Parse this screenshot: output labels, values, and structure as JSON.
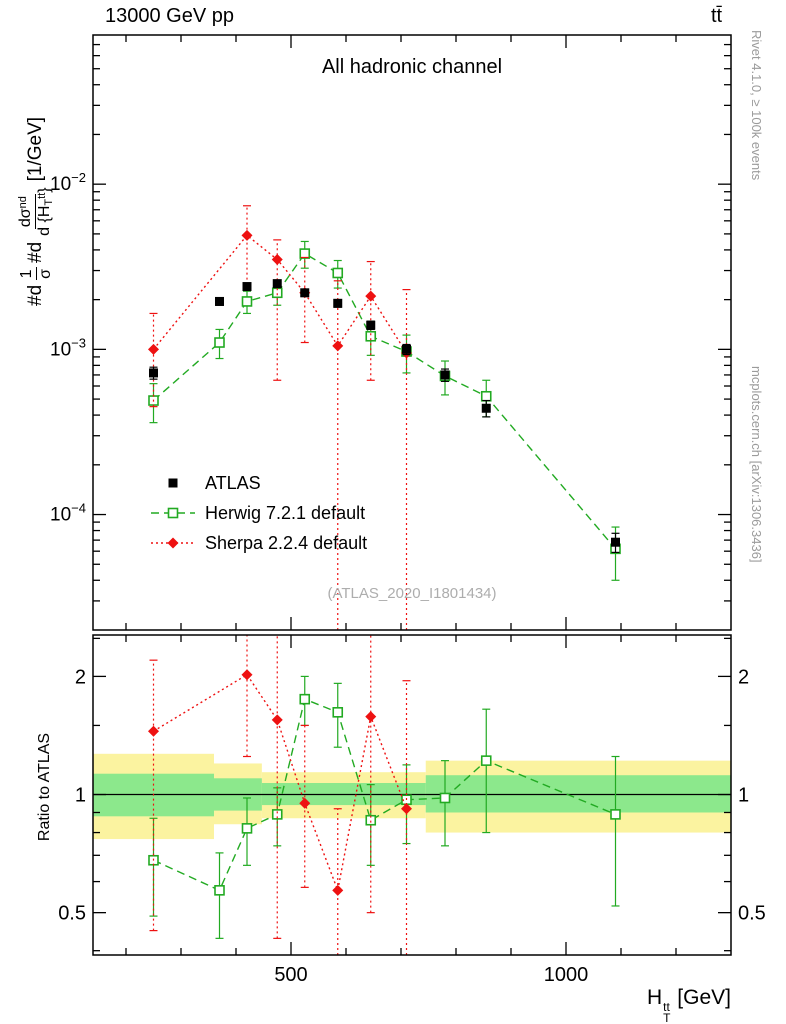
{
  "labels": {
    "header_left": "13000 GeV pp",
    "header_right": "tt̄",
    "title": "All hadronic channel",
    "watermark": "(ATLAS_2020_I1801434)",
    "rivet_note": "Rivet 4.1.0, ≥ 100k events",
    "mcplots_note": "mcplots.cern.ch [arXiv:1306.3436]",
    "ratio_ylabel": "Ratio to ATLAS",
    "xlabel": {
      "base": "H",
      "sup": "tt",
      "sub": "T",
      "unit": " [GeV]"
    },
    "ylabel": {
      "d1": "#d",
      "frac1_num": "1",
      "frac1_den": "σ",
      "d2": "#d",
      "frac2_num": "dσ",
      "frac2_num_sup": "nd",
      "frac2_den_pre": "d {H",
      "frac2_den_sub": "T",
      "frac2_den_sup": "tt",
      "frac2_den_post": "}",
      "unit": "[1/GeV]"
    }
  },
  "chart_data": {
    "type": "scatter",
    "title": "All hadronic channel",
    "xlabel": "H_T^tt [GeV]",
    "ylabel": "#d 1/σ #d dσ^nd / d {H_T^tt} [1/GeV]",
    "ratio_ylabel": "Ratio to ATLAS",
    "legend_position": "inside-left",
    "top_panel": {
      "x_scale": "linear",
      "y_scale": "log",
      "x_domain": [
        140,
        1300
      ],
      "y_domain": [
        2e-05,
        0.08
      ],
      "x_ticks": [
        {
          "label": "500",
          "value": 500
        },
        {
          "label": "1000",
          "value": 1000
        }
      ],
      "x_minor_step": 100,
      "y_ticks": [
        {
          "base": "10",
          "exp": "−2",
          "value": 0.01
        },
        {
          "base": "10",
          "exp": "−3",
          "value": 0.001
        },
        {
          "base": "10",
          "exp": "−4",
          "value": 0.0001
        }
      ]
    },
    "ratio_panel": {
      "y_scale": "log",
      "y_domain": [
        0.39,
        2.55
      ],
      "reference_line": 1,
      "ticks": [
        {
          "label": "2",
          "value": 2
        },
        {
          "label": "1",
          "value": 1
        },
        {
          "label": "0.5",
          "value": 0.5
        }
      ],
      "minor_ticks": [
        0.4,
        0.6,
        0.7,
        0.8,
        0.9,
        1.5,
        2.5
      ]
    },
    "bands": [
      {
        "name": "data-uncertainty-outer",
        "color": "#fbf3a0",
        "segments": [
          {
            "x1": 140,
            "x2": 360,
            "lo": 0.77,
            "hi": 1.27
          },
          {
            "x1": 360,
            "x2": 447,
            "lo": 0.84,
            "hi": 1.2
          },
          {
            "x1": 447,
            "x2": 745,
            "lo": 0.87,
            "hi": 1.14
          },
          {
            "x1": 745,
            "x2": 1300,
            "lo": 0.8,
            "hi": 1.22
          }
        ]
      },
      {
        "name": "data-uncertainty-inner",
        "color": "#8ce88c",
        "segments": [
          {
            "x1": 140,
            "x2": 360,
            "lo": 0.88,
            "hi": 1.13
          },
          {
            "x1": 360,
            "x2": 447,
            "lo": 0.91,
            "hi": 1.1
          },
          {
            "x1": 447,
            "x2": 745,
            "lo": 0.94,
            "hi": 1.07
          },
          {
            "x1": 745,
            "x2": 1300,
            "lo": 0.9,
            "hi": 1.12
          }
        ]
      }
    ],
    "series": [
      {
        "name": "ATLAS",
        "color": "#000000",
        "marker": "square-filled",
        "line": "none",
        "x": [
          250,
          370,
          420,
          475,
          525,
          585,
          645,
          710,
          780,
          855,
          1090
        ],
        "y": [
          0.00072,
          0.00195,
          0.0024,
          0.0025,
          0.0022,
          0.0019,
          0.0014,
          0.001,
          0.0007,
          0.00044,
          6.8e-05
        ],
        "y_lo": [
          0.00066,
          0.00185,
          0.00228,
          0.00238,
          0.00209,
          0.0018,
          0.00132,
          0.00093,
          0.00064,
          0.00039,
          5.9e-05
        ],
        "y_hi": [
          0.00078,
          0.00205,
          0.00252,
          0.00262,
          0.00231,
          0.002,
          0.00148,
          0.00107,
          0.00076,
          0.00049,
          7.7e-05
        ]
      },
      {
        "name": "Herwig 7.2.1 default",
        "color": "#22aa22",
        "marker": "square-open",
        "line": "dashed",
        "x": [
          250,
          370,
          420,
          475,
          525,
          585,
          645,
          710,
          780,
          855,
          1090
        ],
        "y": [
          0.00049,
          0.0011,
          0.00195,
          0.0022,
          0.0038,
          0.0029,
          0.0012,
          0.00097,
          0.00069,
          0.00052,
          6.2e-05
        ],
        "y_lo": [
          0.00036,
          0.00088,
          0.00165,
          0.00185,
          0.0031,
          0.00235,
          0.00092,
          0.00072,
          0.00053,
          0.00039,
          4e-05
        ],
        "y_hi": [
          0.00062,
          0.00132,
          0.00225,
          0.00255,
          0.0045,
          0.00345,
          0.00148,
          0.00122,
          0.00085,
          0.00065,
          8.4e-05
        ],
        "ratio": [
          0.68,
          0.57,
          0.82,
          0.89,
          1.75,
          1.62,
          0.86,
          0.97,
          0.98,
          1.22,
          0.89
        ],
        "ratio_lo": [
          0.49,
          0.43,
          0.66,
          0.74,
          1.5,
          1.32,
          0.66,
          0.75,
          0.74,
          0.8,
          0.52
        ],
        "ratio_hi": [
          0.87,
          0.71,
          0.98,
          1.04,
          2.0,
          1.92,
          1.06,
          1.19,
          1.22,
          1.65,
          1.25
        ]
      },
      {
        "name": "Sherpa 2.2.4 default",
        "color": "#ee1111",
        "marker": "diamond-filled",
        "line": "dotted",
        "x": [
          250,
          420,
          475,
          525,
          585,
          645,
          710
        ],
        "y": [
          0.001,
          0.0049,
          0.0035,
          0.0022,
          0.00105,
          0.0021,
          0.00095
        ],
        "y_lo": [
          0.00045,
          0.0023,
          0.00065,
          0.0011,
          2e-05,
          0.00065,
          2e-05
        ],
        "y_hi": [
          0.00165,
          0.0074,
          0.0046,
          0.0036,
          0.0026,
          0.0034,
          0.0023
        ],
        "ratio": [
          1.45,
          2.02,
          1.55,
          0.95,
          0.57,
          1.58,
          0.92
        ],
        "ratio_lo": [
          0.45,
          1.25,
          0.43,
          0.58,
          0.39,
          0.5,
          0.39
        ],
        "ratio_hi": [
          2.2,
          2.55,
          2.55,
          1.5,
          0.92,
          2.55,
          1.95
        ]
      }
    ]
  }
}
